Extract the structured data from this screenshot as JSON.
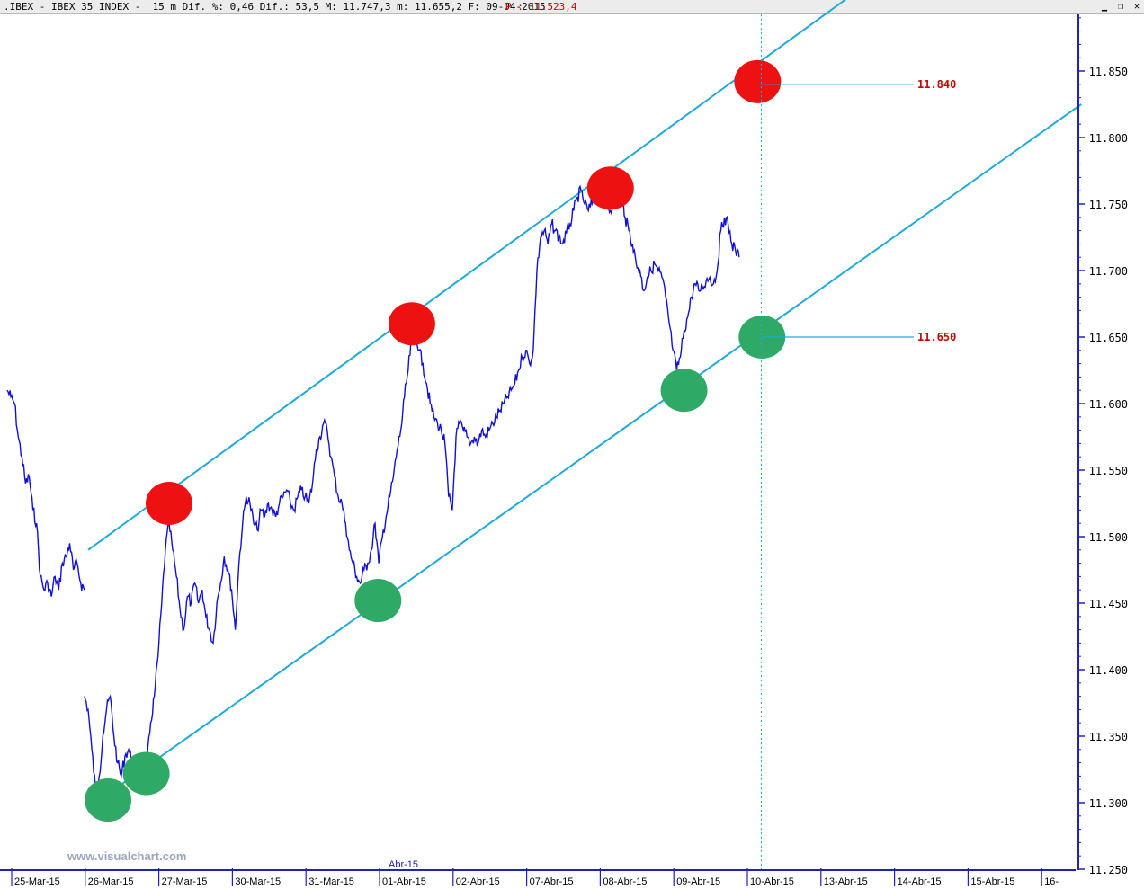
{
  "title_bar": {
    "text": ".IBEX - IBEX 35 INDEX -  15 m Dif. %: 0,46 Dif.: 53,5 M: 11.747,3 m: 11.655,2 F: 09-04-2015",
    "price_text": "P : 11.523,4",
    "buttons": [
      {
        "icon": "minimize-icon",
        "glyph": "▁"
      },
      {
        "icon": "restore-icon",
        "glyph": "❐"
      },
      {
        "icon": "close-icon",
        "glyph": "✕"
      }
    ]
  },
  "watermark": "www.visualchart.com",
  "month_marker": "Abr-15",
  "colors": {
    "price_line": "#1010d8",
    "channel_line": "#1eaad8",
    "axis": "#2020c0",
    "resistance_marker": "#ee1111",
    "support_marker": "#2eaa66",
    "level_label": "#cc0000"
  },
  "chart_data": {
    "type": "line",
    "title": ".IBEX - IBEX 35 INDEX - 15 m",
    "timeframe": "15 m",
    "date": "09-04-2015",
    "ylim": [
      11250,
      11900
    ],
    "y_ticks": [
      "11.250",
      "11.300",
      "11.350",
      "11.400",
      "11.450",
      "11.500",
      "11.550",
      "11.600",
      "11.650",
      "11.700",
      "11.750",
      "11.800",
      "11.850"
    ],
    "y_tick_values": [
      11250,
      11300,
      11350,
      11400,
      11450,
      11500,
      11550,
      11600,
      11650,
      11700,
      11750,
      11800,
      11850
    ],
    "x_tick_labels": [
      "25-Mar-15",
      "26-Mar-15",
      "27-Mar-15",
      "30-Mar-15",
      "31-Mar-15",
      "01-Abr-15",
      "02-Abr-15",
      "07-Abr-15",
      "08-Abr-15",
      "09-Abr-15",
      "10-Abr-15",
      "13-Abr-15",
      "14-Abr-15",
      "15-Abr-15",
      "16-"
    ],
    "x_range": [
      0,
      14.2
    ],
    "series": [
      {
        "type": "price",
        "points": [
          [
            0.0,
            11610
          ],
          [
            0.05,
            11605
          ],
          [
            0.1,
            11600
          ],
          [
            0.15,
            11575
          ],
          [
            0.2,
            11560
          ],
          [
            0.25,
            11540
          ],
          [
            0.3,
            11545
          ],
          [
            0.35,
            11520
          ],
          [
            0.4,
            11510
          ],
          [
            0.45,
            11470
          ],
          [
            0.5,
            11460
          ],
          [
            0.55,
            11465
          ],
          [
            0.6,
            11455
          ],
          [
            0.65,
            11470
          ],
          [
            0.7,
            11460
          ],
          [
            0.75,
            11480
          ],
          [
            0.8,
            11485
          ],
          [
            0.85,
            11495
          ],
          [
            0.9,
            11475
          ],
          [
            0.95,
            11480
          ],
          [
            1.0,
            11465
          ],
          [
            1.05,
            11460
          ],
          [
            1.05,
            11380
          ],
          [
            1.1,
            11370
          ],
          [
            1.15,
            11340
          ],
          [
            1.2,
            11310
          ],
          [
            1.25,
            11320
          ],
          [
            1.3,
            11350
          ],
          [
            1.35,
            11370
          ],
          [
            1.4,
            11380
          ],
          [
            1.45,
            11350
          ],
          [
            1.5,
            11330
          ],
          [
            1.55,
            11320
          ],
          [
            1.6,
            11335
          ],
          [
            1.65,
            11340
          ],
          [
            1.7,
            11330
          ],
          [
            1.75,
            11325
          ],
          [
            1.8,
            11310
          ],
          [
            1.85,
            11320
          ],
          [
            1.9,
            11330
          ],
          [
            1.95,
            11360
          ],
          [
            2.0,
            11380
          ],
          [
            2.05,
            11410
          ],
          [
            2.1,
            11450
          ],
          [
            2.15,
            11490
          ],
          [
            2.2,
            11510
          ],
          [
            2.25,
            11490
          ],
          [
            2.3,
            11470
          ],
          [
            2.35,
            11445
          ],
          [
            2.4,
            11430
          ],
          [
            2.45,
            11455
          ],
          [
            2.5,
            11450
          ],
          [
            2.55,
            11465
          ],
          [
            2.6,
            11450
          ],
          [
            2.65,
            11460
          ],
          [
            2.7,
            11440
          ],
          [
            2.75,
            11430
          ],
          [
            2.8,
            11420
          ],
          [
            2.85,
            11450
          ],
          [
            2.9,
            11465
          ],
          [
            2.95,
            11485
          ],
          [
            3.0,
            11475
          ],
          [
            3.05,
            11460
          ],
          [
            3.1,
            11430
          ],
          [
            3.15,
            11480
          ],
          [
            3.2,
            11510
          ],
          [
            3.25,
            11530
          ],
          [
            3.3,
            11525
          ],
          [
            3.35,
            11510
          ],
          [
            3.4,
            11505
          ],
          [
            3.45,
            11520
          ],
          [
            3.5,
            11515
          ],
          [
            3.55,
            11525
          ],
          [
            3.6,
            11520
          ],
          [
            3.65,
            11515
          ],
          [
            3.7,
            11525
          ],
          [
            3.75,
            11530
          ],
          [
            3.8,
            11535
          ],
          [
            3.85,
            11525
          ],
          [
            3.9,
            11520
          ],
          [
            3.95,
            11530
          ],
          [
            4.0,
            11535
          ],
          [
            4.05,
            11530
          ],
          [
            4.1,
            11525
          ],
          [
            4.15,
            11540
          ],
          [
            4.2,
            11565
          ],
          [
            4.25,
            11575
          ],
          [
            4.3,
            11585
          ],
          [
            4.35,
            11580
          ],
          [
            4.4,
            11560
          ],
          [
            4.45,
            11545
          ],
          [
            4.5,
            11530
          ],
          [
            4.55,
            11525
          ],
          [
            4.6,
            11510
          ],
          [
            4.65,
            11490
          ],
          [
            4.7,
            11480
          ],
          [
            4.75,
            11470
          ],
          [
            4.8,
            11465
          ],
          [
            4.85,
            11475
          ],
          [
            4.9,
            11480
          ],
          [
            4.95,
            11490
          ],
          [
            5.0,
            11510
          ],
          [
            5.05,
            11480
          ],
          [
            5.1,
            11500
          ],
          [
            5.15,
            11515
          ],
          [
            5.2,
            11530
          ],
          [
            5.25,
            11545
          ],
          [
            5.3,
            11565
          ],
          [
            5.35,
            11580
          ],
          [
            5.4,
            11605
          ],
          [
            5.45,
            11625
          ],
          [
            5.5,
            11650
          ],
          [
            5.55,
            11655
          ],
          [
            5.6,
            11640
          ],
          [
            5.65,
            11630
          ],
          [
            5.7,
            11615
          ],
          [
            5.75,
            11600
          ],
          [
            5.8,
            11590
          ],
          [
            5.85,
            11585
          ],
          [
            5.9,
            11580
          ],
          [
            5.95,
            11570
          ],
          [
            6.0,
            11530
          ],
          [
            6.05,
            11520
          ],
          [
            6.1,
            11575
          ],
          [
            6.15,
            11585
          ],
          [
            6.2,
            11580
          ],
          [
            6.25,
            11575
          ],
          [
            6.3,
            11570
          ],
          [
            6.35,
            11575
          ],
          [
            6.4,
            11570
          ],
          [
            6.45,
            11580
          ],
          [
            6.5,
            11575
          ],
          [
            6.55,
            11580
          ],
          [
            6.6,
            11585
          ],
          [
            6.65,
            11590
          ],
          [
            6.7,
            11595
          ],
          [
            6.75,
            11600
          ],
          [
            6.8,
            11605
          ],
          [
            6.85,
            11610
          ],
          [
            6.9,
            11615
          ],
          [
            6.95,
            11625
          ],
          [
            7.0,
            11635
          ],
          [
            7.05,
            11640
          ],
          [
            7.1,
            11630
          ],
          [
            7.15,
            11640
          ],
          [
            7.2,
            11700
          ],
          [
            7.25,
            11725
          ],
          [
            7.3,
            11730
          ],
          [
            7.35,
            11720
          ],
          [
            7.4,
            11735
          ],
          [
            7.45,
            11730
          ],
          [
            7.5,
            11725
          ],
          [
            7.55,
            11720
          ],
          [
            7.6,
            11728
          ],
          [
            7.65,
            11735
          ],
          [
            7.7,
            11745
          ],
          [
            7.75,
            11755
          ],
          [
            7.8,
            11760
          ],
          [
            7.85,
            11750
          ],
          [
            7.9,
            11745
          ],
          [
            7.95,
            11750
          ],
          [
            8.0,
            11760
          ],
          [
            8.05,
            11755
          ],
          [
            8.1,
            11765
          ],
          [
            8.15,
            11750
          ],
          [
            8.2,
            11745
          ],
          [
            8.25,
            11755
          ],
          [
            8.3,
            11750
          ],
          [
            8.35,
            11760
          ],
          [
            8.4,
            11740
          ],
          [
            8.45,
            11730
          ],
          [
            8.5,
            11720
          ],
          [
            8.55,
            11705
          ],
          [
            8.6,
            11700
          ],
          [
            8.65,
            11685
          ],
          [
            8.7,
            11695
          ],
          [
            8.75,
            11700
          ],
          [
            8.8,
            11705
          ],
          [
            8.85,
            11700
          ],
          [
            8.9,
            11695
          ],
          [
            8.95,
            11680
          ],
          [
            9.0,
            11660
          ],
          [
            9.05,
            11640
          ],
          [
            9.1,
            11625
          ],
          [
            9.15,
            11635
          ],
          [
            9.2,
            11655
          ],
          [
            9.25,
            11665
          ],
          [
            9.3,
            11680
          ],
          [
            9.35,
            11690
          ],
          [
            9.4,
            11685
          ],
          [
            9.45,
            11688
          ],
          [
            9.5,
            11692
          ],
          [
            9.55,
            11695
          ],
          [
            9.6,
            11690
          ],
          [
            9.65,
            11700
          ],
          [
            9.7,
            11730
          ],
          [
            9.75,
            11740
          ],
          [
            9.8,
            11735
          ],
          [
            9.85,
            11720
          ],
          [
            9.9,
            11715
          ],
          [
            9.95,
            11710
          ]
        ]
      },
      {
        "type": "channel",
        "name": "upper",
        "points": [
          [
            1.1,
            11490
          ],
          [
            11.6,
            11912
          ]
        ]
      },
      {
        "type": "channel",
        "name": "lower",
        "points": [
          [
            1.2,
            11300
          ],
          [
            14.6,
            11825
          ]
        ]
      }
    ],
    "markers": [
      {
        "type": "resistance",
        "x": 2.2,
        "y": 11525
      },
      {
        "type": "resistance",
        "x": 5.5,
        "y": 11660
      },
      {
        "type": "resistance",
        "x": 8.2,
        "y": 11762
      },
      {
        "type": "resistance",
        "x": 10.2,
        "y": 11842
      },
      {
        "type": "support",
        "x": 1.37,
        "y": 11302
      },
      {
        "type": "support",
        "x": 1.89,
        "y": 11322
      },
      {
        "type": "support",
        "x": 5.04,
        "y": 11452
      },
      {
        "type": "support",
        "x": 9.2,
        "y": 11610
      },
      {
        "type": "support",
        "x": 10.26,
        "y": 11650
      }
    ],
    "vertical_line_x": 10.25,
    "levels": [
      {
        "label": "11.840",
        "value": 11840
      },
      {
        "label": "11.650",
        "value": 11650
      }
    ]
  }
}
